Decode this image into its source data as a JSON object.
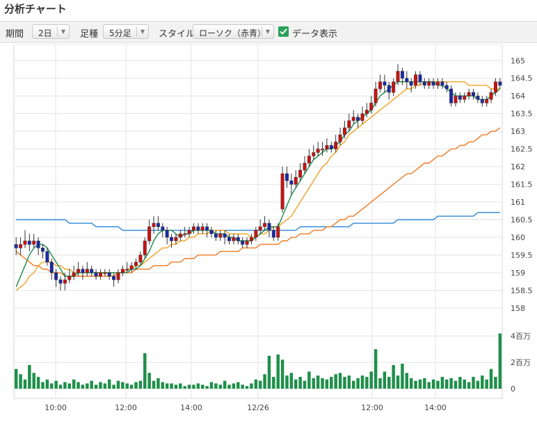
{
  "title": "分析チャート",
  "controls": {
    "period_label": "期間",
    "period_value": "2日",
    "interval_label": "足種",
    "interval_value": "5分足",
    "style_label": "スタイル",
    "style_value": "ローソク（赤青）",
    "show_data_label": "データ表示",
    "show_data_checked": true
  },
  "colors": {
    "up": "#cc1111",
    "down": "#1a2aa8",
    "ma_short": "#1b8a4a",
    "ma_mid": "#f0a020",
    "ma_long": "#f07820",
    "ma_longest": "#2a86d8",
    "volume": "#1f8f4a",
    "grid": "#e3e3e3"
  },
  "chart_data": {
    "type": "candlestick",
    "y_ticks": [
      "158",
      "158.5",
      "159",
      "159.5",
      "160",
      "160.5",
      "161",
      "161.5",
      "162",
      "162.5",
      "163",
      "163.5",
      "164",
      "164.5",
      "165"
    ],
    "ylim": [
      157.8,
      165.3
    ],
    "x_ticks": [
      "10:00",
      "12:00",
      "14:00",
      "12/26",
      "12:00",
      "14:00"
    ],
    "volume_ticks": [
      "0",
      "2百万",
      "4百万"
    ],
    "volume_lim": [
      0,
      4800000
    ],
    "candles": [
      [
        159.8,
        159.7,
        160.0,
        159.5
      ],
      [
        159.7,
        159.8,
        160.0,
        159.5
      ],
      [
        159.8,
        159.9,
        160.2,
        159.7
      ],
      [
        159.9,
        159.8,
        160.1,
        159.6
      ],
      [
        159.8,
        159.9,
        160.1,
        159.7
      ],
      [
        159.9,
        159.7,
        160.0,
        159.5
      ],
      [
        159.7,
        159.6,
        159.8,
        159.4
      ],
      [
        159.6,
        159.3,
        159.7,
        159.2
      ],
      [
        159.3,
        159.0,
        159.4,
        158.8
      ],
      [
        159.0,
        158.8,
        159.1,
        158.6
      ],
      [
        158.8,
        158.7,
        158.9,
        158.5
      ],
      [
        158.7,
        158.8,
        159.0,
        158.5
      ],
      [
        158.8,
        158.9,
        159.1,
        158.7
      ],
      [
        158.9,
        159.0,
        159.2,
        158.8
      ],
      [
        159.0,
        159.1,
        159.3,
        158.9
      ],
      [
        159.1,
        159.0,
        159.2,
        158.8
      ],
      [
        159.0,
        159.1,
        159.3,
        158.9
      ],
      [
        159.1,
        159.0,
        159.2,
        158.9
      ],
      [
        159.0,
        158.9,
        159.1,
        158.8
      ],
      [
        158.9,
        159.0,
        159.1,
        158.8
      ],
      [
        159.0,
        159.0,
        159.1,
        158.9
      ],
      [
        159.0,
        158.9,
        159.1,
        158.8
      ],
      [
        158.9,
        158.8,
        159.0,
        158.6
      ],
      [
        158.8,
        159.0,
        159.1,
        158.7
      ],
      [
        159.0,
        159.1,
        159.2,
        158.9
      ],
      [
        159.1,
        159.1,
        159.3,
        159.0
      ],
      [
        159.1,
        159.2,
        159.3,
        159.0
      ],
      [
        159.2,
        159.3,
        159.4,
        159.1
      ],
      [
        159.3,
        159.5,
        159.6,
        159.2
      ],
      [
        159.5,
        159.9,
        160.0,
        159.4
      ],
      [
        159.9,
        160.3,
        160.5,
        159.8
      ],
      [
        160.3,
        160.4,
        160.6,
        160.1
      ],
      [
        160.4,
        160.3,
        160.6,
        160.2
      ],
      [
        160.3,
        160.2,
        160.4,
        160.0
      ],
      [
        160.2,
        160.0,
        160.3,
        159.8
      ],
      [
        160.0,
        159.9,
        160.1,
        159.7
      ],
      [
        159.9,
        160.0,
        160.1,
        159.8
      ],
      [
        160.0,
        160.1,
        160.2,
        159.9
      ],
      [
        160.1,
        160.1,
        160.3,
        160.0
      ],
      [
        160.1,
        160.2,
        160.3,
        160.0
      ],
      [
        160.2,
        160.3,
        160.4,
        160.1
      ],
      [
        160.3,
        160.2,
        160.4,
        160.1
      ],
      [
        160.2,
        160.3,
        160.4,
        160.1
      ],
      [
        160.3,
        160.2,
        160.4,
        160.0
      ],
      [
        160.2,
        160.1,
        160.3,
        160.0
      ],
      [
        160.1,
        160.0,
        160.2,
        159.9
      ],
      [
        160.0,
        160.1,
        160.2,
        159.9
      ],
      [
        160.1,
        160.0,
        160.2,
        159.8
      ],
      [
        160.0,
        159.9,
        160.1,
        159.8
      ],
      [
        159.9,
        160.0,
        160.1,
        159.8
      ],
      [
        160.0,
        159.9,
        160.1,
        159.8
      ],
      [
        159.9,
        159.8,
        160.0,
        159.7
      ],
      [
        159.8,
        159.9,
        160.0,
        159.7
      ],
      [
        159.9,
        160.0,
        160.1,
        159.8
      ],
      [
        160.0,
        160.2,
        160.3,
        159.9
      ],
      [
        160.2,
        160.3,
        160.5,
        160.1
      ],
      [
        160.3,
        160.4,
        160.6,
        160.2
      ],
      [
        160.4,
        160.2,
        160.5,
        160.0
      ],
      [
        160.2,
        160.0,
        160.3,
        159.9
      ],
      [
        160.0,
        160.3,
        160.4,
        159.9
      ],
      [
        160.8,
        161.8,
        162.0,
        160.7
      ],
      [
        161.8,
        161.6,
        162.0,
        161.4
      ],
      [
        161.6,
        161.5,
        161.8,
        161.2
      ],
      [
        161.5,
        161.7,
        161.9,
        161.4
      ],
      [
        161.7,
        161.9,
        162.1,
        161.6
      ],
      [
        161.9,
        162.1,
        162.3,
        161.8
      ],
      [
        162.1,
        162.3,
        162.5,
        162.0
      ],
      [
        162.3,
        162.4,
        162.6,
        162.2
      ],
      [
        162.4,
        162.5,
        162.7,
        162.3
      ],
      [
        162.5,
        162.5,
        162.7,
        162.3
      ],
      [
        162.5,
        162.6,
        162.8,
        162.4
      ],
      [
        162.6,
        162.5,
        162.7,
        162.4
      ],
      [
        162.5,
        162.7,
        162.9,
        162.4
      ],
      [
        162.7,
        162.9,
        163.1,
        162.6
      ],
      [
        162.9,
        163.1,
        163.3,
        162.8
      ],
      [
        163.1,
        163.3,
        163.5,
        163.0
      ],
      [
        163.3,
        163.4,
        163.6,
        163.2
      ],
      [
        163.4,
        163.3,
        163.5,
        163.1
      ],
      [
        163.3,
        163.5,
        163.7,
        163.2
      ],
      [
        163.5,
        163.6,
        163.8,
        163.4
      ],
      [
        163.6,
        163.8,
        164.0,
        163.5
      ],
      [
        163.8,
        164.2,
        164.4,
        163.7
      ],
      [
        164.2,
        164.4,
        164.6,
        164.1
      ],
      [
        164.4,
        164.3,
        164.6,
        164.1
      ],
      [
        164.3,
        164.1,
        164.4,
        163.9
      ],
      [
        164.1,
        164.4,
        164.5,
        164.0
      ],
      [
        164.4,
        164.7,
        164.9,
        164.3
      ],
      [
        164.7,
        164.5,
        164.8,
        164.3
      ],
      [
        164.5,
        164.4,
        164.7,
        164.2
      ],
      [
        164.4,
        164.3,
        164.5,
        164.1
      ],
      [
        164.3,
        164.6,
        164.7,
        164.2
      ],
      [
        164.6,
        164.4,
        164.7,
        164.3
      ],
      [
        164.4,
        164.3,
        164.5,
        164.2
      ],
      [
        164.3,
        164.4,
        164.5,
        164.2
      ],
      [
        164.4,
        164.3,
        164.5,
        164.2
      ],
      [
        164.3,
        164.4,
        164.5,
        164.2
      ],
      [
        164.4,
        164.3,
        164.5,
        164.2
      ],
      [
        164.3,
        164.2,
        164.4,
        164.1
      ],
      [
        164.2,
        163.8,
        164.3,
        163.7
      ],
      [
        163.8,
        164.0,
        164.1,
        163.7
      ],
      [
        164.0,
        163.9,
        164.1,
        163.8
      ],
      [
        163.9,
        164.0,
        164.1,
        163.8
      ],
      [
        164.0,
        164.1,
        164.2,
        163.9
      ],
      [
        164.1,
        164.0,
        164.2,
        163.9
      ],
      [
        164.0,
        163.9,
        164.1,
        163.8
      ],
      [
        163.9,
        163.8,
        164.0,
        163.7
      ],
      [
        163.8,
        163.9,
        164.0,
        163.7
      ],
      [
        163.9,
        164.1,
        164.2,
        163.8
      ],
      [
        164.1,
        164.4,
        164.5,
        164.0
      ],
      [
        164.4,
        164.3,
        164.5,
        164.2
      ]
    ],
    "ma_short": [
      158.6,
      158.9,
      159.2,
      159.5,
      159.7,
      159.8,
      159.8,
      159.7,
      159.5,
      159.3,
      159.1,
      158.9,
      158.9,
      158.9,
      159.0,
      159.0,
      159.0,
      159.0,
      159.0,
      159.0,
      159.0,
      159.0,
      159.0,
      159.0,
      159.0,
      159.0,
      159.1,
      159.1,
      159.2,
      159.4,
      159.6,
      159.9,
      160.1,
      160.2,
      160.2,
      160.2,
      160.1,
      160.0,
      160.1,
      160.1,
      160.2,
      160.2,
      160.2,
      160.2,
      160.2,
      160.1,
      160.1,
      160.1,
      160.0,
      160.0,
      159.9,
      159.9,
      159.9,
      159.9,
      160.0,
      160.1,
      160.2,
      160.3,
      160.3,
      160.3,
      160.6,
      160.9,
      161.2,
      161.4,
      161.6,
      161.8,
      162.0,
      162.2,
      162.3,
      162.4,
      162.5,
      162.5,
      162.6,
      162.7,
      162.9,
      163.0,
      163.2,
      163.3,
      163.4,
      163.5,
      163.6,
      163.8,
      164.0,
      164.1,
      164.2,
      164.3,
      164.4,
      164.4,
      164.4,
      164.4,
      164.4,
      164.4,
      164.4,
      164.4,
      164.4,
      164.3,
      164.3,
      164.2,
      164.1,
      164.0,
      164.0,
      164.0,
      164.0,
      164.0,
      163.9,
      163.9,
      163.9,
      164.0,
      164.1,
      164.2
    ],
    "ma_mid": [
      158.5,
      158.6,
      158.7,
      158.9,
      159.0,
      159.2,
      159.3,
      159.3,
      159.3,
      159.2,
      159.2,
      159.1,
      159.1,
      159.0,
      159.0,
      159.0,
      159.0,
      159.0,
      159.0,
      159.0,
      159.0,
      159.0,
      159.0,
      159.0,
      159.0,
      159.1,
      159.1,
      159.2,
      159.2,
      159.3,
      159.4,
      159.5,
      159.6,
      159.7,
      159.7,
      159.8,
      159.8,
      159.9,
      159.9,
      160.0,
      160.0,
      160.1,
      160.1,
      160.1,
      160.2,
      160.2,
      160.2,
      160.2,
      160.1,
      160.1,
      160.1,
      160.1,
      160.1,
      160.0,
      160.0,
      160.1,
      160.1,
      160.2,
      160.3,
      160.3,
      160.4,
      160.5,
      160.6,
      160.8,
      161.0,
      161.2,
      161.4,
      161.6,
      161.8,
      162.0,
      162.1,
      162.3,
      162.4,
      162.6,
      162.7,
      162.9,
      163.0,
      163.1,
      163.2,
      163.3,
      163.4,
      163.5,
      163.6,
      163.7,
      163.8,
      163.9,
      164.0,
      164.1,
      164.2,
      164.2,
      164.3,
      164.3,
      164.4,
      164.4,
      164.4,
      164.4,
      164.4,
      164.4,
      164.4,
      164.4,
      164.4,
      164.4,
      164.3,
      164.3,
      164.3,
      164.3,
      164.3,
      164.2,
      164.2,
      164.2
    ],
    "ma_long": [
      159.6,
      159.5,
      159.4,
      159.3,
      159.2,
      159.2,
      159.1,
      159.1,
      159.0,
      159.0,
      159.0,
      158.9,
      158.9,
      158.9,
      158.9,
      158.9,
      158.9,
      158.9,
      158.9,
      158.9,
      158.9,
      158.9,
      158.9,
      159.0,
      159.0,
      159.0,
      159.0,
      159.1,
      159.1,
      159.1,
      159.1,
      159.2,
      159.2,
      159.2,
      159.2,
      159.3,
      159.3,
      159.3,
      159.4,
      159.4,
      159.4,
      159.5,
      159.5,
      159.5,
      159.5,
      159.5,
      159.6,
      159.6,
      159.6,
      159.6,
      159.6,
      159.7,
      159.7,
      159.7,
      159.7,
      159.8,
      159.8,
      159.8,
      159.8,
      159.8,
      159.9,
      159.9,
      160.0,
      160.0,
      160.1,
      160.1,
      160.1,
      160.2,
      160.2,
      160.2,
      160.3,
      160.3,
      160.4,
      160.5,
      160.5,
      160.6,
      160.6,
      160.7,
      160.8,
      160.9,
      161.0,
      161.1,
      161.2,
      161.3,
      161.4,
      161.5,
      161.6,
      161.7,
      161.8,
      161.8,
      161.9,
      162.0,
      162.1,
      162.1,
      162.2,
      162.3,
      162.3,
      162.4,
      162.5,
      162.5,
      162.6,
      162.6,
      162.7,
      162.7,
      162.8,
      162.9,
      162.9,
      163.0,
      163.0,
      163.1
    ],
    "ma_longest": [
      160.5,
      160.5,
      160.5,
      160.5,
      160.5,
      160.5,
      160.5,
      160.5,
      160.5,
      160.5,
      160.5,
      160.5,
      160.4,
      160.4,
      160.4,
      160.4,
      160.4,
      160.4,
      160.3,
      160.3,
      160.3,
      160.3,
      160.3,
      160.3,
      160.2,
      160.2,
      160.2,
      160.2,
      160.2,
      160.2,
      160.2,
      160.2,
      160.2,
      160.2,
      160.2,
      160.2,
      160.2,
      160.2,
      160.2,
      160.2,
      160.2,
      160.2,
      160.2,
      160.2,
      160.2,
      160.2,
      160.2,
      160.2,
      160.2,
      160.2,
      160.2,
      160.2,
      160.2,
      160.2,
      160.2,
      160.2,
      160.2,
      160.2,
      160.2,
      160.2,
      160.2,
      160.2,
      160.2,
      160.2,
      160.3,
      160.3,
      160.3,
      160.3,
      160.3,
      160.3,
      160.3,
      160.3,
      160.3,
      160.3,
      160.3,
      160.3,
      160.4,
      160.4,
      160.4,
      160.4,
      160.4,
      160.4,
      160.4,
      160.4,
      160.4,
      160.4,
      160.5,
      160.5,
      160.5,
      160.5,
      160.5,
      160.5,
      160.5,
      160.5,
      160.5,
      160.6,
      160.6,
      160.6,
      160.6,
      160.6,
      160.6,
      160.6,
      160.6,
      160.6,
      160.7,
      160.7,
      160.7,
      160.7,
      160.7,
      160.7
    ],
    "volume": [
      1500000,
      1100000,
      700000,
      1800000,
      1200000,
      900000,
      500000,
      700000,
      400000,
      600000,
      300000,
      500000,
      400000,
      700000,
      500000,
      300000,
      400000,
      600000,
      300000,
      500000,
      400000,
      700000,
      300000,
      600000,
      500000,
      400000,
      300000,
      500000,
      600000,
      2700000,
      1200000,
      600000,
      800000,
      500000,
      400000,
      400000,
      300000,
      400000,
      200000,
      300000,
      300000,
      400000,
      300000,
      200000,
      500000,
      400000,
      300000,
      600000,
      300000,
      400000,
      500000,
      300000,
      200000,
      400000,
      700000,
      600000,
      1100000,
      2500000,
      900000,
      2600000,
      2200000,
      1000000,
      1200000,
      700000,
      900000,
      600000,
      1300000,
      800000,
      1000000,
      800000,
      700000,
      900000,
      1100000,
      1200000,
      900000,
      1000000,
      600000,
      800000,
      1000000,
      900000,
      1300000,
      3000000,
      800000,
      1300000,
      900000,
      1800000,
      1000000,
      1900000,
      1200000,
      800000,
      600000,
      700000,
      800000,
      500000,
      700000,
      600000,
      900000,
      700000,
      800000,
      600000,
      900000,
      700000,
      500000,
      900000,
      600000,
      1000000,
      700000,
      1500000,
      900000,
      4200000
    ]
  }
}
